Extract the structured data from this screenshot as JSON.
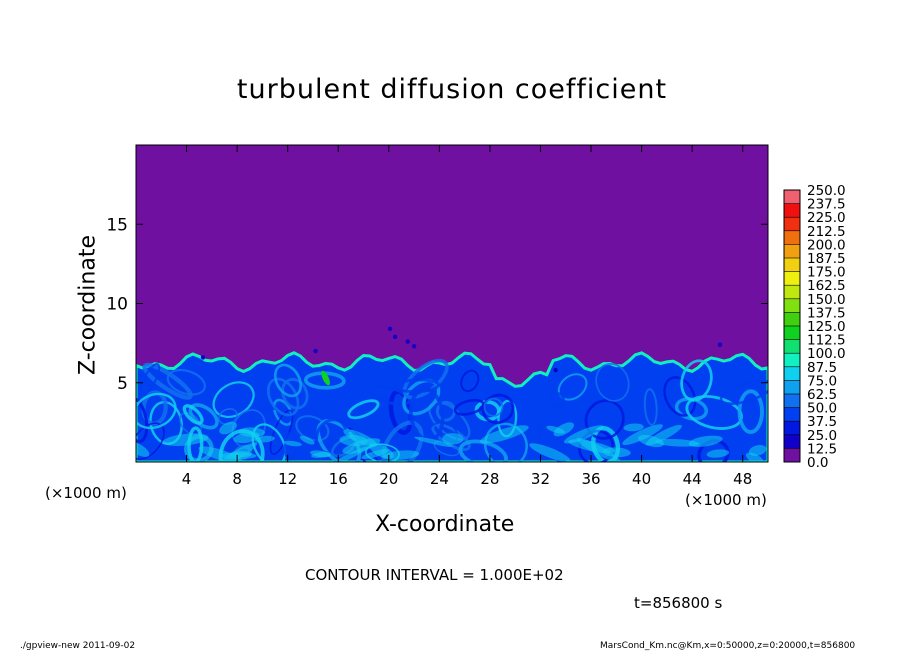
{
  "chart_data": {
    "type": "heatmap",
    "title": "turbulent diffusion coefficient",
    "xlabel": "X-coordinate",
    "ylabel": "Z-coordinate",
    "x_unit_label": "(×1000 m)",
    "x_ticks": [
      4,
      8,
      12,
      16,
      20,
      24,
      28,
      32,
      36,
      40,
      44,
      48
    ],
    "y_ticks": [
      5,
      10,
      15
    ],
    "xlim": [
      0,
      50
    ],
    "ylim": [
      0,
      20
    ],
    "colorbar": {
      "levels": [
        "0.0",
        "12.5",
        "25.0",
        "37.5",
        "50.0",
        "62.5",
        "75.0",
        "87.5",
        "100.0",
        "112.5",
        "125.0",
        "137.5",
        "150.0",
        "162.5",
        "175.0",
        "187.5",
        "200.0",
        "212.5",
        "225.0",
        "237.5",
        "250.0"
      ],
      "colors": [
        "#7010a0",
        "#1000c8",
        "#0018e0",
        "#0040f0",
        "#1070f0",
        "#10a0f0",
        "#10d0f0",
        "#10f0c0",
        "#10e070",
        "#10d020",
        "#40d010",
        "#80e010",
        "#c0e810",
        "#f0f010",
        "#f0d010",
        "#f0a010",
        "#f07010",
        "#f03010",
        "#f01010",
        "#f06070"
      ]
    },
    "background_value_color": "#7010a0",
    "turbulent_layer_top_km": 6.3,
    "contour_interval": "CONTOUR INTERVAL = 1.000E+02",
    "time": "t=856800 s"
  },
  "footer": {
    "left": "./gpview-new  2011-09-02",
    "right": "MarsCond_Km.nc@Km,x=0:50000,z=0:20000,t=856800"
  }
}
